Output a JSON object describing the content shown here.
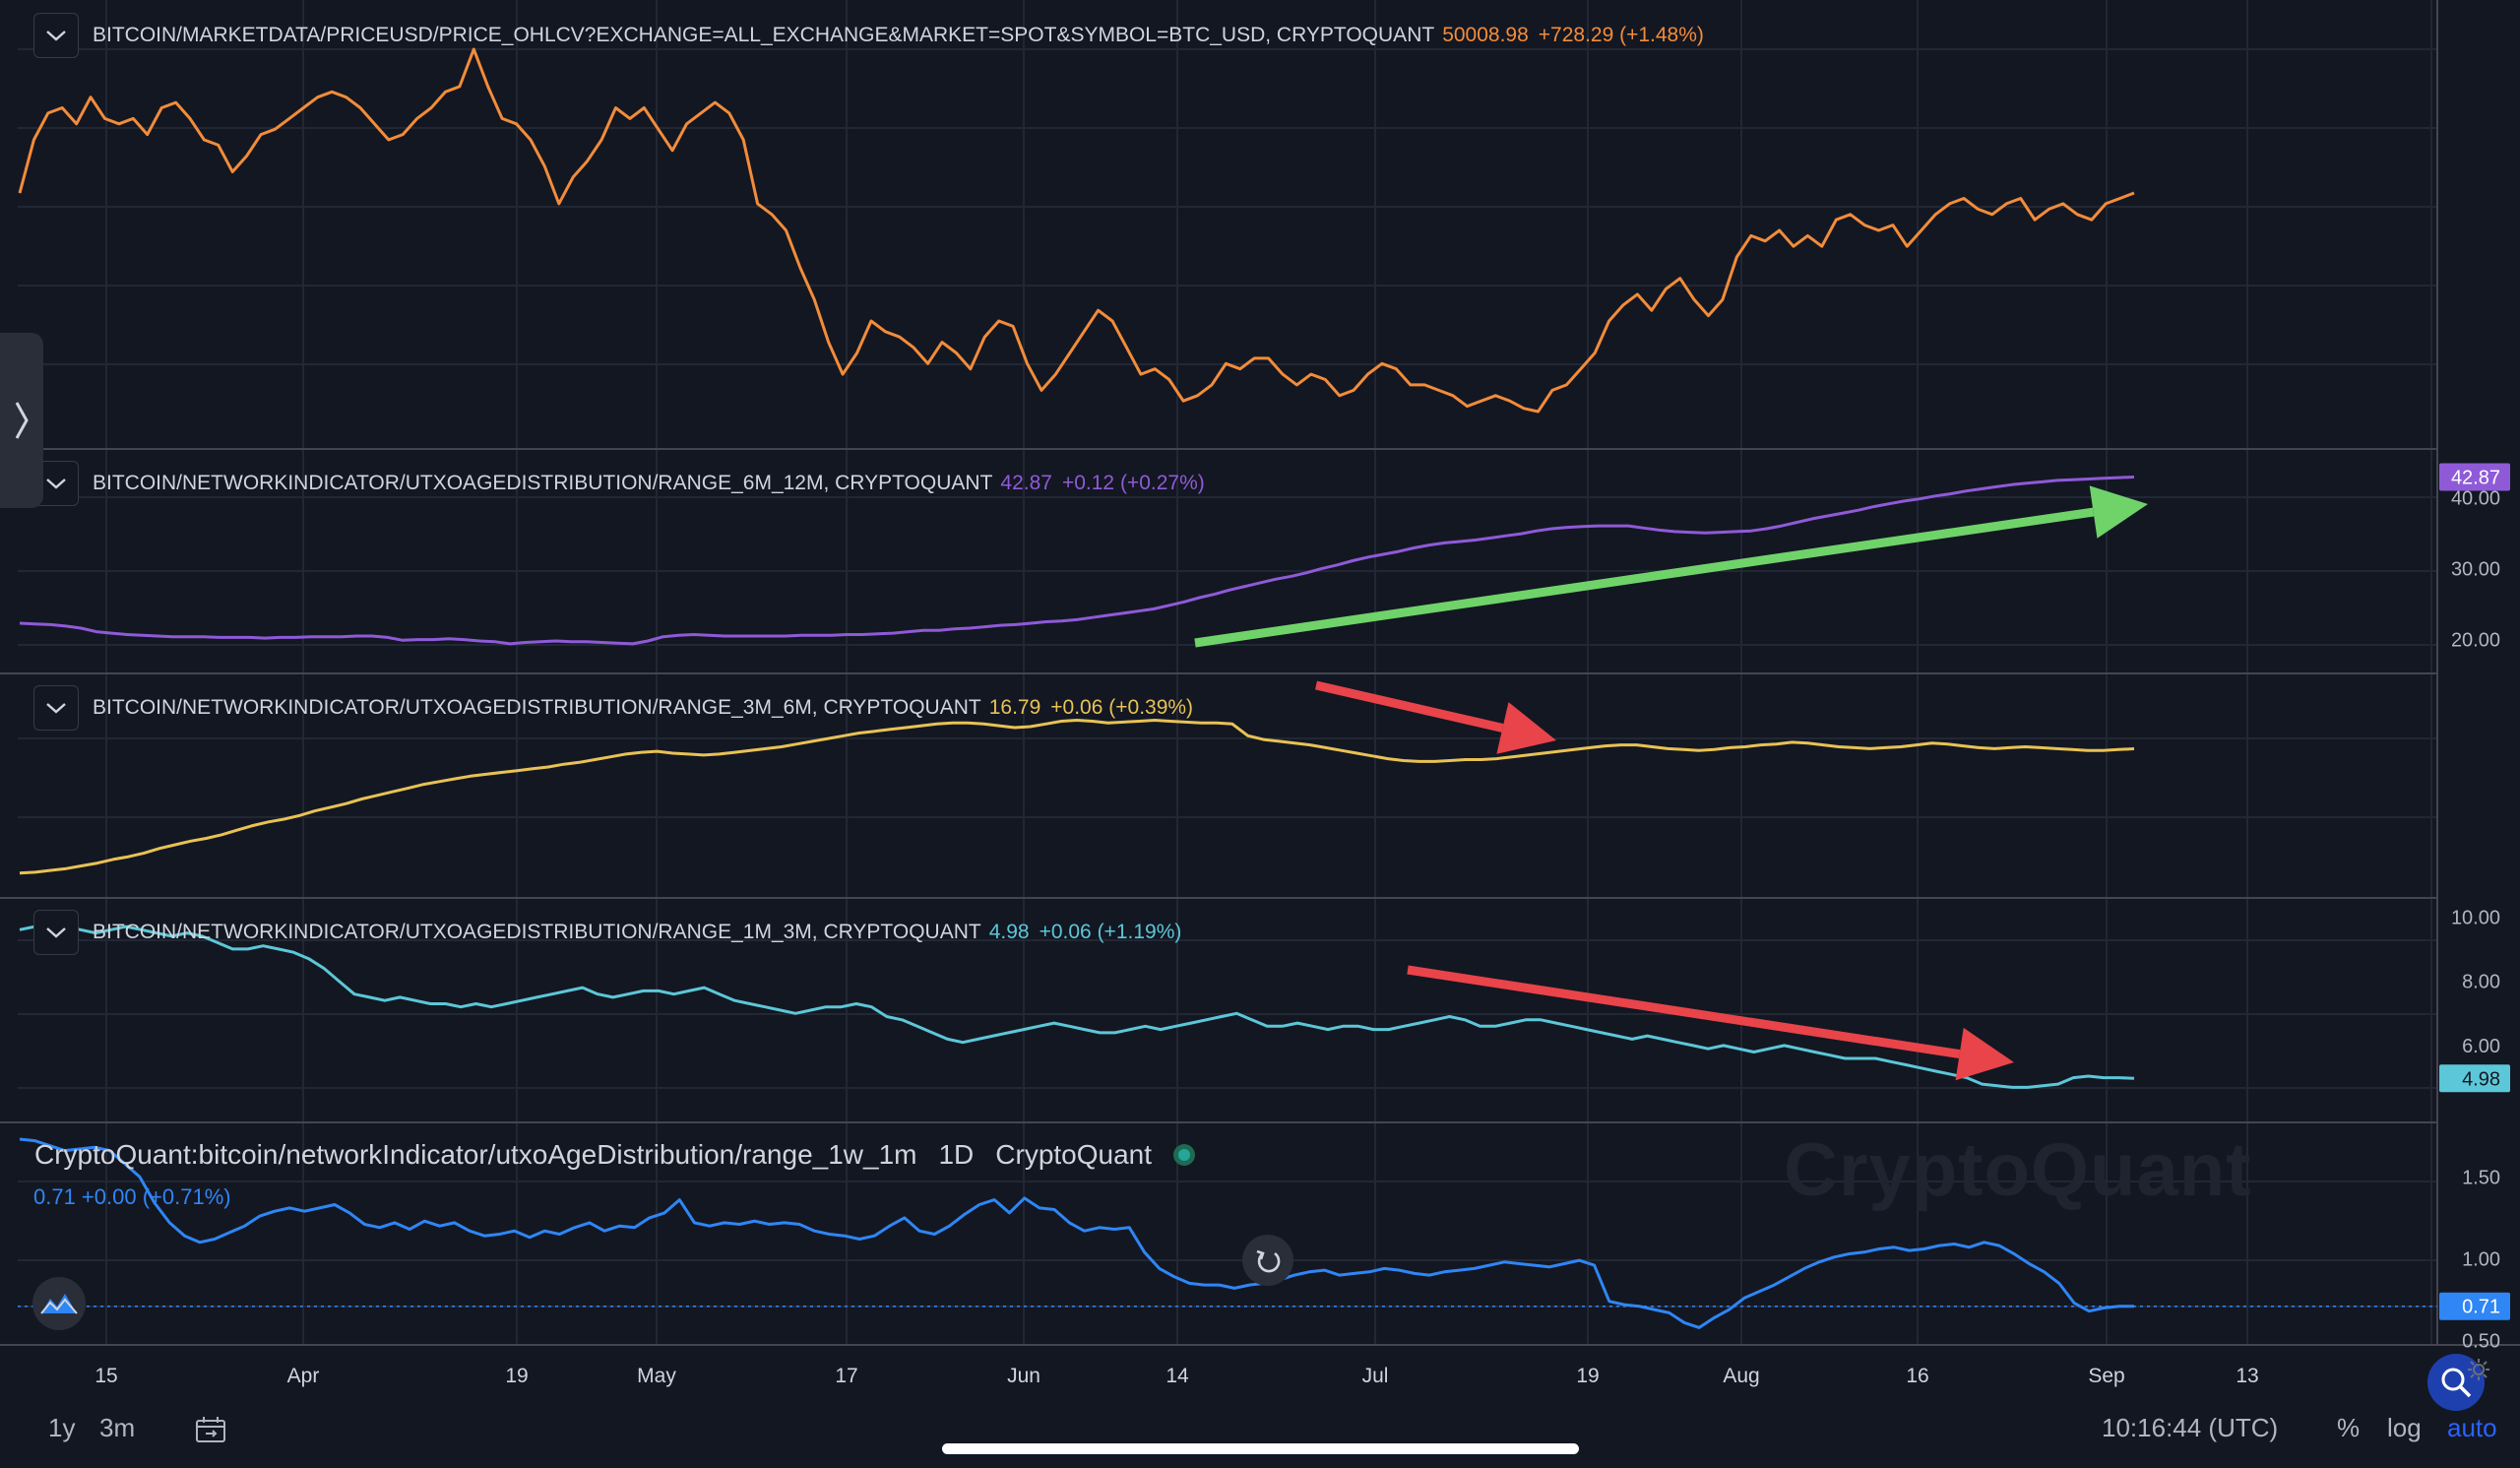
{
  "panels": [
    {
      "title": "BITCOIN/MARKETDATA/PRICEUSD/PRICE_OHLCV?EXCHANGE=ALL_EXCHANGE&MARKET=SPOT&SYMBOL=BTC_USD, CRYPTOQUANT",
      "value": "50008.98",
      "change": "+728.29 (+1.48%)",
      "color": "#f28c3a"
    },
    {
      "title": "BITCOIN/NETWORKINDICATOR/UTXOAGEDISTRIBUTION/RANGE_6M_12M, CRYPTOQUANT",
      "value": "42.87",
      "change": "+0.12 (+0.27%)",
      "color": "#8f5ad8"
    },
    {
      "title": "BITCOIN/NETWORKINDICATOR/UTXOAGEDISTRIBUTION/RANGE_3M_6M, CRYPTOQUANT",
      "value": "16.79",
      "change": "+0.06 (+0.39%)",
      "color": "#e8c255"
    },
    {
      "title": "BITCOIN/NETWORKINDICATOR/UTXOAGEDISTRIBUTION/RANGE_1M_3M, CRYPTOQUANT",
      "value": "4.98",
      "change": "+0.06 (+1.19%)",
      "color": "#5cc7d8"
    }
  ],
  "bottom_panel": {
    "title": "CryptoQuant:bitcoin/networkIndicator/utxoAgeDistribution/range_1w_1m",
    "interval": "1D",
    "source": "CryptoQuant",
    "value_line": "0.71 +0.00 (+0.71%)",
    "color": "#2f86f5"
  },
  "watermark": "CryptoQuant",
  "footer": {
    "range_1y": "1y",
    "range_3m": "3m",
    "time": "10:16:44 (UTC)",
    "percent": "%",
    "log": "log",
    "auto": "auto"
  },
  "icons": {
    "collapse": "chevron-down-icon",
    "sidebar": "chevron-right-icon",
    "reset": "reset-icon",
    "search": "search-icon",
    "settings": "gear-icon",
    "compare": "date-range-icon",
    "logo": "cryptoquant-logo-icon"
  },
  "colors": {
    "background": "#131722",
    "up_arrow": "#6fd36a",
    "down_arrow": "#e8444a",
    "grid": "#2a2e39"
  },
  "chart_data": [
    {
      "type": "line",
      "title": "BITCOIN/MARKETDATA/PRICEUSD/PRICE_OHLCV?EXCHANGE=ALL_EXCHANGE&MARKET=SPOT&SYMBOL=BTC_USD, CRYPTOQUANT",
      "x_tick_labels": [
        "15",
        "Apr",
        "19",
        "May",
        "17",
        "Jun",
        "14",
        "Jul",
        "19",
        "Aug",
        "16",
        "Sep",
        "13"
      ],
      "x_start": "Mar 8",
      "x_end": "Sep 4",
      "y_tick_labels": [],
      "series": [
        {
          "name": "BITCOIN/MARKETDATA/PRICEUSD",
          "color": "#f28c3a",
          "values": [
            50000,
            55000,
            57500,
            58000,
            56500,
            59000,
            57000,
            56500,
            57000,
            55500,
            58000,
            58500,
            57000,
            55000,
            54500,
            52000,
            53500,
            55500,
            56000,
            57000,
            58000,
            59000,
            59500,
            59000,
            58000,
            56500,
            55000,
            55500,
            57000,
            58000,
            59500,
            60000,
            63500,
            60000,
            57000,
            56500,
            55000,
            52500,
            49000,
            51500,
            53000,
            55000,
            58000,
            57000,
            58000,
            56000,
            54000,
            56500,
            57500,
            58500,
            57500,
            55000,
            49000,
            48000,
            46500,
            43000,
            40000,
            36000,
            33000,
            35000,
            38000,
            37000,
            36500,
            35500,
            34000,
            36000,
            35000,
            33500,
            36500,
            38000,
            37500,
            34000,
            31500,
            33000,
            35000,
            37000,
            39000,
            38000,
            35500,
            33000,
            33500,
            32500,
            30500,
            31000,
            32000,
            34000,
            33500,
            34500,
            34500,
            33000,
            32000,
            33000,
            32500,
            31000,
            31500,
            33000,
            34000,
            33500,
            32000,
            32000,
            31500,
            31000,
            30000,
            30500,
            31000,
            30500,
            29800,
            29500,
            31500,
            32000,
            33500,
            35000,
            38000,
            39500,
            40500,
            39000,
            41000,
            42000,
            40000,
            38500,
            40000,
            44000,
            46000,
            45500,
            46500,
            45000,
            46000,
            45000,
            47500,
            48000,
            47000,
            46500,
            47000,
            45000,
            46500,
            48000,
            49000,
            49500,
            48500,
            48000,
            49000,
            49500,
            47500,
            48500,
            49000,
            48000,
            47500,
            49000,
            49500,
            50008.98
          ]
        }
      ]
    },
    {
      "type": "line",
      "title": "BITCOIN/NETWORKINDICATOR/UTXOAGEDISTRIBUTION/RANGE_6M_12M, CRYPTOQUANT",
      "x_start": "Mar 8",
      "x_end": "Sep 4",
      "y_tick_labels": [
        "40.00",
        "30.00",
        "20.00"
      ],
      "ylim": [
        18,
        43.5
      ],
      "last_value_label": "42.87",
      "annotation": "green arrow pointing up-right (rising trend)",
      "series": [
        {
          "name": "RANGE_6M_12M",
          "color": "#8f5ad8",
          "values": [
            22.3,
            22.2,
            22.1,
            21.9,
            21.6,
            21.1,
            20.9,
            20.7,
            20.6,
            20.5,
            20.4,
            20.4,
            20.4,
            20.3,
            20.3,
            20.3,
            20.2,
            20.3,
            20.3,
            20.4,
            20.4,
            20.4,
            20.5,
            20.5,
            20.3,
            19.9,
            20.0,
            20.0,
            20.1,
            20.0,
            19.8,
            19.7,
            19.4,
            19.6,
            19.7,
            19.8,
            19.7,
            19.7,
            19.6,
            19.5,
            19.4,
            19.8,
            20.4,
            20.6,
            20.7,
            20.6,
            20.5,
            20.5,
            20.5,
            20.5,
            20.5,
            20.6,
            20.6,
            20.6,
            20.7,
            20.7,
            20.8,
            20.9,
            21.1,
            21.3,
            21.3,
            21.5,
            21.6,
            21.8,
            22.0,
            22.1,
            22.3,
            22.5,
            22.6,
            22.8,
            23.1,
            23.4,
            23.7,
            24.0,
            24.3,
            24.8,
            25.3,
            25.9,
            26.4,
            27.0,
            27.5,
            28.0,
            28.5,
            28.9,
            29.4,
            30.0,
            30.5,
            31.1,
            31.6,
            32.0,
            32.4,
            32.9,
            33.3,
            33.6,
            33.8,
            34.0,
            34.3,
            34.6,
            34.9,
            35.3,
            35.6,
            35.8,
            35.9,
            36.0,
            36.0,
            36.0,
            35.7,
            35.4,
            35.2,
            35.1,
            35.0,
            35.1,
            35.2,
            35.3,
            35.6,
            36.0,
            36.5,
            37.0,
            37.4,
            37.8,
            38.2,
            38.7,
            39.1,
            39.5,
            39.8,
            40.2,
            40.5,
            40.9,
            41.2,
            41.5,
            41.8,
            42.0,
            42.2,
            42.4,
            42.5,
            42.6,
            42.7,
            42.8,
            42.87
          ]
        }
      ]
    },
    {
      "type": "line",
      "title": "BITCOIN/NETWORKINDICATOR/UTXOAGEDISTRIBUTION/RANGE_3M_6M, CRYPTOQUANT",
      "x_start": "Mar 8",
      "x_end": "Sep 4",
      "y_tick_labels": [],
      "ylim": [
        2,
        22
      ],
      "annotation": "red arrow pointing down-right (falling trend)",
      "series": [
        {
          "name": "RANGE_3M_6M",
          "color": "#e8c255",
          "values": [
            3.2,
            3.3,
            3.5,
            3.7,
            4.0,
            4.3,
            4.7,
            5.0,
            5.4,
            5.9,
            6.3,
            6.7,
            7.0,
            7.4,
            7.9,
            8.4,
            8.8,
            9.1,
            9.5,
            10.0,
            10.4,
            10.8,
            11.3,
            11.7,
            12.1,
            12.5,
            12.9,
            13.2,
            13.5,
            13.8,
            14.0,
            14.2,
            14.4,
            14.6,
            14.8,
            15.1,
            15.3,
            15.6,
            15.9,
            16.2,
            16.4,
            16.5,
            16.3,
            16.2,
            16.1,
            16.2,
            16.4,
            16.6,
            16.8,
            17.0,
            17.3,
            17.6,
            17.9,
            18.2,
            18.5,
            18.7,
            18.9,
            19.1,
            19.3,
            19.5,
            19.6,
            19.6,
            19.5,
            19.3,
            19.1,
            19.2,
            19.5,
            19.8,
            19.9,
            19.8,
            19.6,
            19.7,
            19.8,
            19.9,
            19.8,
            19.7,
            19.6,
            19.6,
            19.5,
            18.2,
            17.8,
            17.6,
            17.4,
            17.2,
            16.9,
            16.6,
            16.3,
            16.0,
            15.7,
            15.5,
            15.4,
            15.4,
            15.5,
            15.6,
            15.6,
            15.7,
            15.9,
            16.1,
            16.3,
            16.5,
            16.7,
            16.9,
            17.1,
            17.2,
            17.2,
            17.0,
            16.8,
            16.7,
            16.6,
            16.7,
            16.9,
            17.0,
            17.2,
            17.3,
            17.5,
            17.4,
            17.2,
            17.0,
            16.9,
            16.8,
            16.9,
            17.0,
            17.2,
            17.4,
            17.3,
            17.1,
            16.9,
            16.8,
            16.9,
            17.0,
            16.9,
            16.8,
            16.7,
            16.6,
            16.6,
            16.7,
            16.79
          ]
        }
      ]
    },
    {
      "type": "line",
      "title": "BITCOIN/NETWORKINDICATOR/UTXOAGEDISTRIBUTION/RANGE_1M_3M, CRYPTOQUANT",
      "x_start": "Mar 8",
      "x_end": "Sep 4",
      "y_tick_labels": [
        "10.00",
        "8.00",
        "6.00"
      ],
      "ylim": [
        4.1,
        10.1
      ],
      "last_value_label": "4.98",
      "annotation": "red arrow pointing down-right (falling trend)",
      "series": [
        {
          "name": "RANGE_1M_3M",
          "color": "#5cc7d8",
          "values": [
            9.6,
            9.7,
            9.8,
            9.7,
            9.6,
            9.5,
            9.6,
            9.7,
            9.6,
            9.5,
            9.4,
            9.5,
            9.4,
            9.2,
            9.0,
            9.0,
            9.1,
            9.0,
            8.9,
            8.7,
            8.4,
            8.0,
            7.6,
            7.5,
            7.4,
            7.5,
            7.4,
            7.3,
            7.3,
            7.2,
            7.3,
            7.2,
            7.3,
            7.4,
            7.5,
            7.6,
            7.7,
            7.8,
            7.6,
            7.5,
            7.6,
            7.7,
            7.7,
            7.6,
            7.7,
            7.8,
            7.6,
            7.4,
            7.3,
            7.2,
            7.1,
            7.0,
            7.1,
            7.2,
            7.2,
            7.3,
            7.2,
            6.9,
            6.8,
            6.6,
            6.4,
            6.2,
            6.1,
            6.2,
            6.3,
            6.4,
            6.5,
            6.6,
            6.7,
            6.6,
            6.5,
            6.4,
            6.4,
            6.5,
            6.6,
            6.5,
            6.6,
            6.7,
            6.8,
            6.9,
            7.0,
            6.8,
            6.6,
            6.6,
            6.7,
            6.6,
            6.5,
            6.6,
            6.6,
            6.5,
            6.5,
            6.6,
            6.7,
            6.8,
            6.9,
            6.8,
            6.6,
            6.6,
            6.7,
            6.8,
            6.8,
            6.7,
            6.6,
            6.5,
            6.4,
            6.3,
            6.2,
            6.3,
            6.2,
            6.1,
            6.0,
            5.9,
            6.0,
            5.9,
            5.8,
            5.9,
            6.0,
            5.9,
            5.8,
            5.7,
            5.6,
            5.6,
            5.6,
            5.5,
            5.4,
            5.3,
            5.2,
            5.1,
            5.0,
            4.8,
            4.75,
            4.7,
            4.7,
            4.75,
            4.8,
            5.0,
            5.05,
            5.0,
            5.0,
            4.98
          ]
        }
      ]
    },
    {
      "type": "line",
      "title": "CryptoQuant:bitcoin/networkIndicator/utxoAgeDistribution/range_1w_1m",
      "x_start": "Mar 8",
      "x_end": "Sep 4",
      "y_tick_labels": [
        "1.50",
        "1.00",
        "0.50"
      ],
      "ylim": [
        0.48,
        1.82
      ],
      "last_value_label": "0.71",
      "series": [
        {
          "name": "range_1w_1m",
          "color": "#2f86f5",
          "values": [
            1.73,
            1.72,
            1.69,
            1.66,
            1.67,
            1.68,
            1.66,
            1.58,
            1.5,
            1.34,
            1.22,
            1.14,
            1.1,
            1.12,
            1.16,
            1.2,
            1.26,
            1.29,
            1.31,
            1.29,
            1.31,
            1.33,
            1.28,
            1.21,
            1.19,
            1.22,
            1.18,
            1.23,
            1.2,
            1.22,
            1.17,
            1.14,
            1.15,
            1.17,
            1.13,
            1.17,
            1.15,
            1.19,
            1.22,
            1.17,
            1.2,
            1.19,
            1.25,
            1.28,
            1.36,
            1.22,
            1.2,
            1.22,
            1.21,
            1.23,
            1.21,
            1.22,
            1.21,
            1.17,
            1.15,
            1.14,
            1.12,
            1.14,
            1.2,
            1.25,
            1.17,
            1.15,
            1.2,
            1.27,
            1.33,
            1.36,
            1.28,
            1.37,
            1.31,
            1.3,
            1.22,
            1.17,
            1.19,
            1.18,
            1.19,
            1.04,
            0.94,
            0.89,
            0.85,
            0.84,
            0.84,
            0.82,
            0.84,
            0.85,
            0.87,
            0.9,
            0.92,
            0.93,
            0.9,
            0.91,
            0.92,
            0.94,
            0.93,
            0.91,
            0.9,
            0.92,
            0.93,
            0.94,
            0.96,
            0.98,
            0.97,
            0.96,
            0.95,
            0.97,
            0.99,
            0.96,
            0.74,
            0.72,
            0.71,
            0.69,
            0.67,
            0.61,
            0.58,
            0.64,
            0.69,
            0.76,
            0.8,
            0.84,
            0.89,
            0.94,
            0.98,
            1.01,
            1.03,
            1.04,
            1.06,
            1.07,
            1.05,
            1.06,
            1.08,
            1.09,
            1.07,
            1.1,
            1.08,
            1.03,
            0.97,
            0.92,
            0.85,
            0.73,
            0.68,
            0.7,
            0.71,
            0.71
          ]
        }
      ]
    }
  ]
}
